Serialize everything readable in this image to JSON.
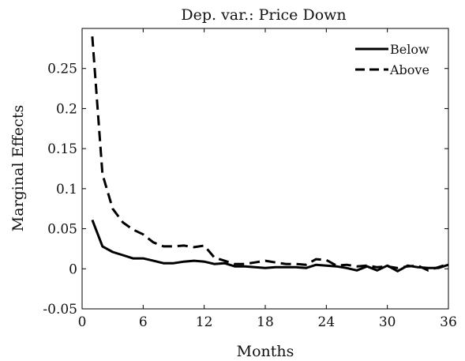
{
  "chart_data": {
    "type": "line",
    "title": "Dep. var.: Price Down",
    "xlabel": "Months",
    "ylabel": "Marginal Effects",
    "xlim": [
      0,
      36
    ],
    "ylim": [
      -0.05,
      0.3
    ],
    "xticks": [
      0,
      6,
      12,
      18,
      24,
      30,
      36
    ],
    "xtick_labels": [
      "0",
      "6",
      "12",
      "18",
      "24",
      "30",
      "36"
    ],
    "yticks": [
      -0.05,
      0,
      0.05,
      0.1,
      0.15,
      0.2,
      0.25
    ],
    "ytick_labels": [
      "-0.05",
      "0",
      "0.05",
      "0.1",
      "0.15",
      "0.2",
      "0.25"
    ],
    "grid": false,
    "legend_position": "top-right",
    "series": [
      {
        "name": "Below",
        "style": "solid",
        "color": "#000000",
        "x": [
          1,
          2,
          3,
          4,
          5,
          6,
          7,
          8,
          9,
          10,
          11,
          12,
          13,
          14,
          15,
          16,
          17,
          18,
          19,
          20,
          21,
          22,
          23,
          24,
          25,
          26,
          27,
          28,
          29,
          30,
          31,
          32,
          33,
          34,
          35,
          36
        ],
        "values": [
          0.061,
          0.028,
          0.021,
          0.017,
          0.013,
          0.013,
          0.01,
          0.007,
          0.007,
          0.009,
          0.01,
          0.009,
          0.006,
          0.007,
          0.003,
          0.003,
          0.002,
          0.001,
          0.002,
          0.002,
          0.002,
          0.001,
          0.005,
          0.004,
          0.003,
          0.001,
          -0.002,
          0.003,
          -0.002,
          0.004,
          -0.003,
          0.004,
          0.002,
          0.001,
          0.001,
          0.005
        ]
      },
      {
        "name": "Above",
        "style": "dashed",
        "color": "#000000",
        "x": [
          1,
          2,
          3,
          4,
          5,
          6,
          7,
          8,
          9,
          10,
          11,
          12,
          13,
          14,
          15,
          16,
          17,
          18,
          19,
          20,
          21,
          22,
          23,
          24,
          25,
          26,
          27,
          28,
          29,
          30,
          31,
          32,
          33,
          34,
          35,
          36
        ],
        "values": [
          0.29,
          0.118,
          0.075,
          0.058,
          0.049,
          0.043,
          0.033,
          0.028,
          0.028,
          0.029,
          0.027,
          0.029,
          0.014,
          0.01,
          0.006,
          0.006,
          0.008,
          0.01,
          0.008,
          0.006,
          0.006,
          0.005,
          0.012,
          0.011,
          0.004,
          0.005,
          0.003,
          0.004,
          0.002,
          0.003,
          0.001,
          0.003,
          0.004,
          -0.002,
          0.002,
          0.006
        ]
      }
    ]
  }
}
